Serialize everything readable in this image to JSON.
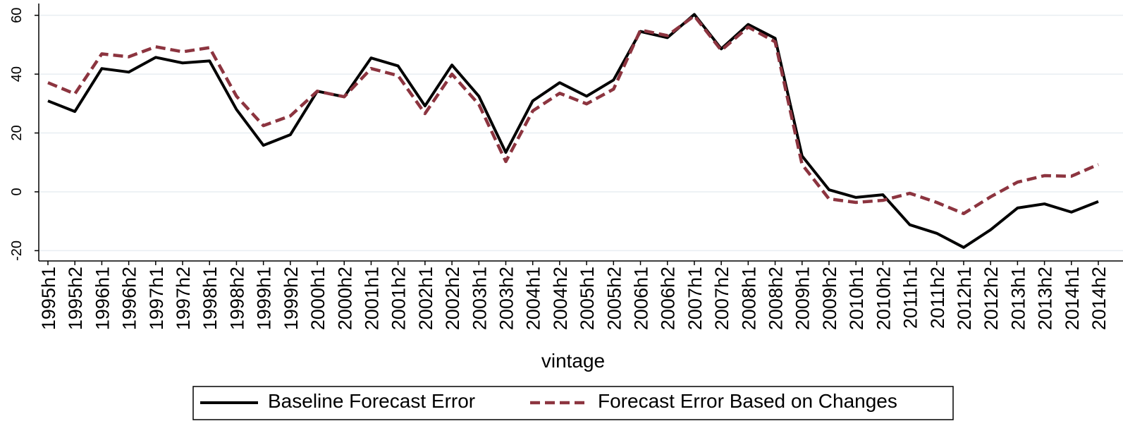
{
  "chart_data": {
    "type": "line",
    "x_label": "vintage",
    "categories": [
      "1995h1",
      "1995h2",
      "1996h1",
      "1996h2",
      "1997h1",
      "1997h2",
      "1998h1",
      "1998h2",
      "1999h1",
      "1999h2",
      "2000h1",
      "2000h2",
      "2001h1",
      "2001h2",
      "2002h1",
      "2002h2",
      "2003h1",
      "2003h2",
      "2004h1",
      "2004h2",
      "2005h1",
      "2005h2",
      "2006h1",
      "2006h2",
      "2007h1",
      "2007h2",
      "2008h1",
      "2008h2",
      "2009h1",
      "2009h2",
      "2010h1",
      "2010h2",
      "2011h1",
      "2011h2",
      "2012h1",
      "2012h2",
      "2013h1",
      "2013h2",
      "2014h1",
      "2014h2"
    ],
    "series": [
      {
        "name": "Baseline Forecast Error",
        "color": "#000000",
        "dash": false,
        "values": [
          30.9,
          27.3,
          41.9,
          40.7,
          45.7,
          43.8,
          44.5,
          28,
          15.8,
          19.4,
          34.2,
          32.3,
          45.5,
          42.8,
          29.2,
          43.1,
          32.5,
          13.4,
          30.9,
          37.1,
          32.5,
          38,
          54.5,
          52.4,
          60.3,
          48.6,
          56.9,
          52.2,
          12.2,
          0.7,
          -1.9,
          -1,
          -11.2,
          -14.1,
          -18.9,
          -12.9,
          -5.5,
          -4.1,
          -6.9,
          -3.3
        ]
      },
      {
        "name": "Forecast Error Based on Changes",
        "color": "#8c343f",
        "dash": true,
        "values": [
          37.1,
          33.3,
          46.9,
          45.9,
          49.3,
          47.6,
          49,
          32.5,
          22.5,
          25.8,
          34.2,
          32.3,
          41.9,
          39.5,
          26.6,
          40,
          29.7,
          10.3,
          27.5,
          33.5,
          29.9,
          34.9,
          55,
          53.1,
          59.8,
          48.1,
          56,
          51,
          9.3,
          -2.4,
          -3.6,
          -2.9,
          -0.5,
          -3.6,
          -7.4,
          -1.7,
          3.3,
          5.5,
          5.3,
          9.3
        ]
      }
    ],
    "ylim": [
      -23.5,
      64
    ],
    "yticks": [
      -20,
      0,
      20,
      40,
      60
    ],
    "grid": true
  }
}
